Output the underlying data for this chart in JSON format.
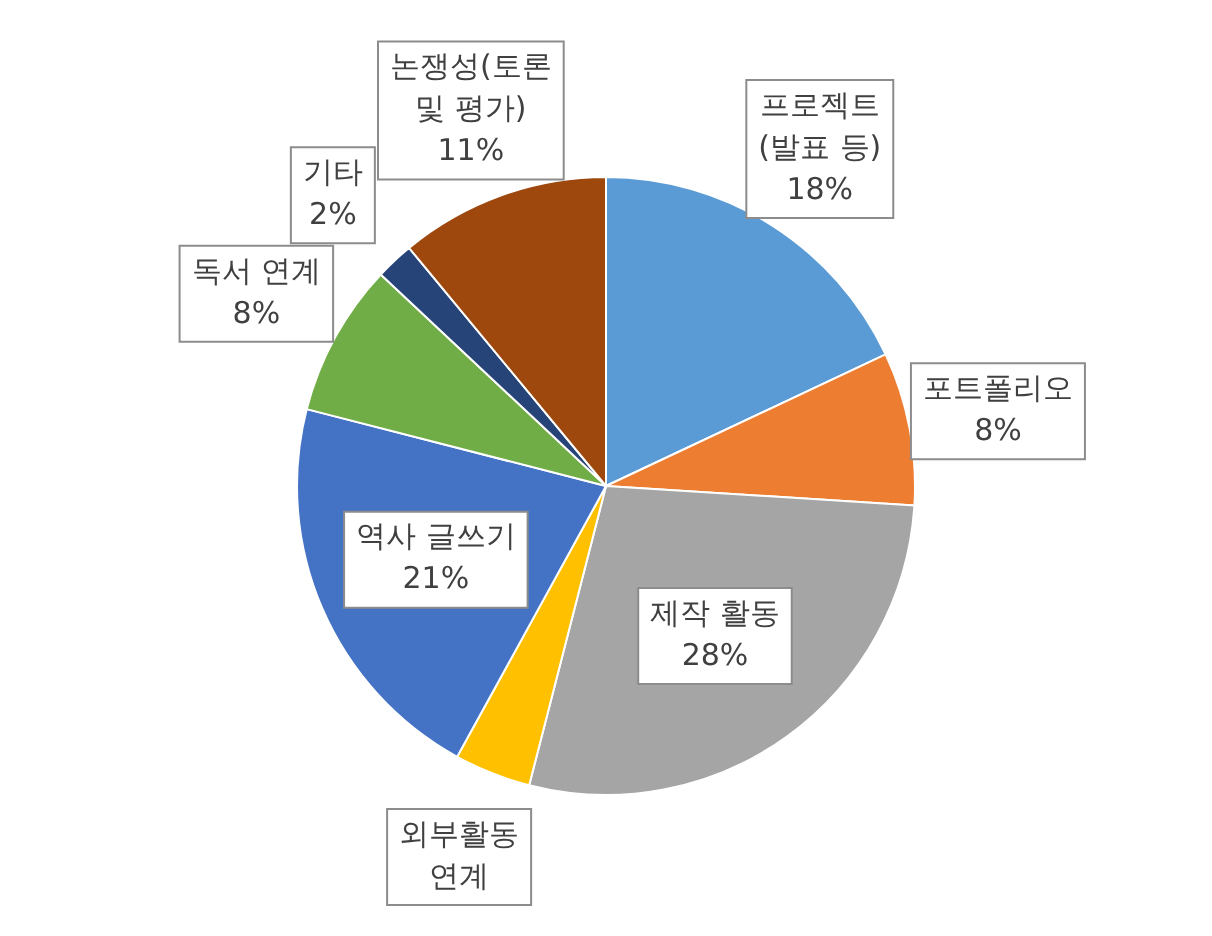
{
  "chart_data": {
    "type": "pie",
    "categories": [
      "프로젝트 (발표 등)",
      "포트폴리오",
      "제작 활동",
      "외부활동 연계",
      "역사 글쓰기",
      "독서 연계",
      "기타",
      "논쟁성(토론 및 평가)"
    ],
    "values": [
      18,
      8,
      28,
      4,
      21,
      8,
      2,
      11
    ],
    "colors": [
      "#5b9bd5",
      "#ed7d31",
      "#a5a5a5",
      "#ffc000",
      "#4472c4",
      "#70ad47",
      "#264478",
      "#9e480e"
    ],
    "value_labels": [
      "18%",
      "8%",
      "28%",
      null,
      "21%",
      "8%",
      "2%",
      "11%"
    ],
    "legend": false
  }
}
